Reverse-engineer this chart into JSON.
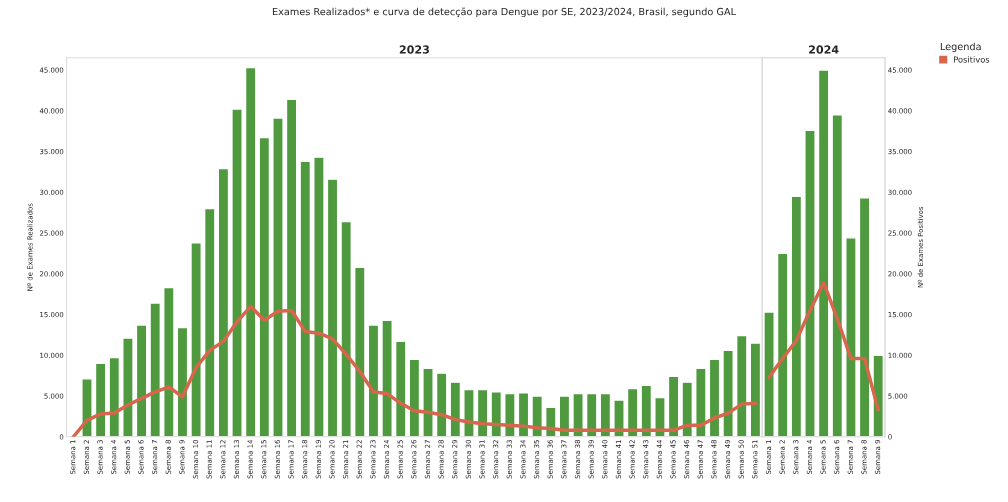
{
  "chart_data": [
    {
      "type": "bar",
      "title": "Exames Realizados* e curva de detecção para Dengue por SE, 2023/2024, Brasil, segundo GAL",
      "subtitle": "2023",
      "ylabel": "Nº de Exames Realizados",
      "categories": [
        "Semana 1",
        "Semana 2",
        "Semana 3",
        "Semana 4",
        "Semana 5",
        "Semana 6",
        "Semana 7",
        "Semana 8",
        "Semana 9",
        "Semana 10",
        "Semana 11",
        "Semana 12",
        "Semana 13",
        "Semana 14",
        "Semana 15",
        "Semana 16",
        "Semana 17",
        "Semana 18",
        "Semana 19",
        "Semana 20",
        "Semana 21",
        "Semana 22",
        "Semana 23",
        "Semana 24",
        "Semana 25",
        "Semana 26",
        "Semana 27",
        "Semana 28",
        "Semana 29",
        "Semana 30",
        "Semana 31",
        "Semana 32",
        "Semana 33",
        "Semana 34",
        "Semana 35",
        "Semana 36",
        "Semana 37",
        "Semana 38",
        "Semana 39",
        "Semana 40",
        "Semana 41",
        "Semana 42",
        "Semana 43",
        "Semana 44",
        "Semana 45",
        "Semana 46",
        "Semana 47",
        "Semana 48",
        "Semana 49",
        "Semana 50",
        "Semana 51"
      ],
      "series": [
        {
          "color": "#4f9a3f",
          "values": [
            null,
            7100,
            9000,
            9700,
            12100,
            13700,
            16400,
            18300,
            13400,
            23800,
            28000,
            32900,
            40200,
            45300,
            36700,
            39100,
            41400,
            33800,
            34300,
            31600,
            26400,
            20800,
            13700,
            14300,
            11700,
            9500,
            8400,
            7800,
            6700,
            5800,
            5800,
            5500,
            5300,
            5400,
            5000,
            3600,
            5000,
            5300,
            5300,
            5300,
            4500,
            5900,
            6300,
            4800,
            7400,
            6700,
            8400,
            9500,
            10600,
            12400,
            11500
          ]
        },
        {
          "type": "line",
          "color": "#d6674c",
          "values": [
            0,
            2000,
            2800,
            2900,
            3900,
            4700,
            5500,
            6100,
            4900,
            8500,
            10600,
            11700,
            14100,
            16000,
            14300,
            15400,
            15500,
            12900,
            12700,
            12000,
            10100,
            8000,
            5500,
            5300,
            4100,
            3200,
            3000,
            2700,
            2100,
            1800,
            1600,
            1500,
            1400,
            1300,
            1100,
            1000,
            800,
            800,
            800,
            800,
            800,
            800,
            800,
            800,
            800,
            1400,
            1400,
            2300,
            2900,
            4000,
            4100
          ]
        }
      ],
      "ylim": [
        0,
        46500
      ],
      "yticks": [
        0,
        {
          "value": 5000,
          "label": "5.000"
        },
        {
          "value": 10000,
          "label": "10.000"
        },
        {
          "value": 15000,
          "label": "15.000"
        },
        {
          "value": 20000,
          "label": "20.000"
        },
        {
          "value": 25000,
          "label": "25.000"
        },
        {
          "value": 30000,
          "label": "30.000"
        },
        {
          "value": 35000,
          "label": "35.000"
        },
        {
          "value": 40000,
          "label": "40.000"
        },
        {
          "value": 45000,
          "label": "45.000"
        }
      ],
      "grid": false
    },
    {
      "type": "bar",
      "subtitle": "2024",
      "y2label": "Nº de Exames Positivos",
      "legend_title": "Legenda",
      "categories": [
        "Semana 1",
        "Semana 2",
        "Semana 3",
        "Semana 4",
        "Semana 5",
        "Semana 6",
        "Semana 7",
        "Semana 8",
        "Semana 9"
      ],
      "series": [
        {
          "axis": "y2",
          "color": "#4f9a3f",
          "values": [
            15300,
            22500,
            29500,
            37600,
            45000,
            39500,
            24400,
            29300,
            10000
          ]
        },
        {
          "type": "line",
          "axis": "y2",
          "name": "Positivos",
          "color": "#d6674c",
          "values": [
            7300,
            9600,
            11800,
            15500,
            18900,
            14500,
            9600,
            9600,
            3300
          ]
        }
      ],
      "y2lim": [
        0,
        46500
      ],
      "y2ticks": [
        0,
        {
          "value": 5000,
          "label": "5.000"
        },
        {
          "value": 10000,
          "label": "10.000"
        },
        {
          "value": 15000,
          "label": "15.000"
        },
        {
          "value": 20000,
          "label": "20.000"
        },
        {
          "value": 25000,
          "label": "25.000"
        },
        {
          "value": 30000,
          "label": "30.000"
        },
        {
          "value": 35000,
          "label": "35.000"
        },
        {
          "value": 40000,
          "label": "40.000"
        },
        {
          "value": 45000,
          "label": "45.000"
        }
      ],
      "grid": false,
      "legend": "top right"
    }
  ]
}
